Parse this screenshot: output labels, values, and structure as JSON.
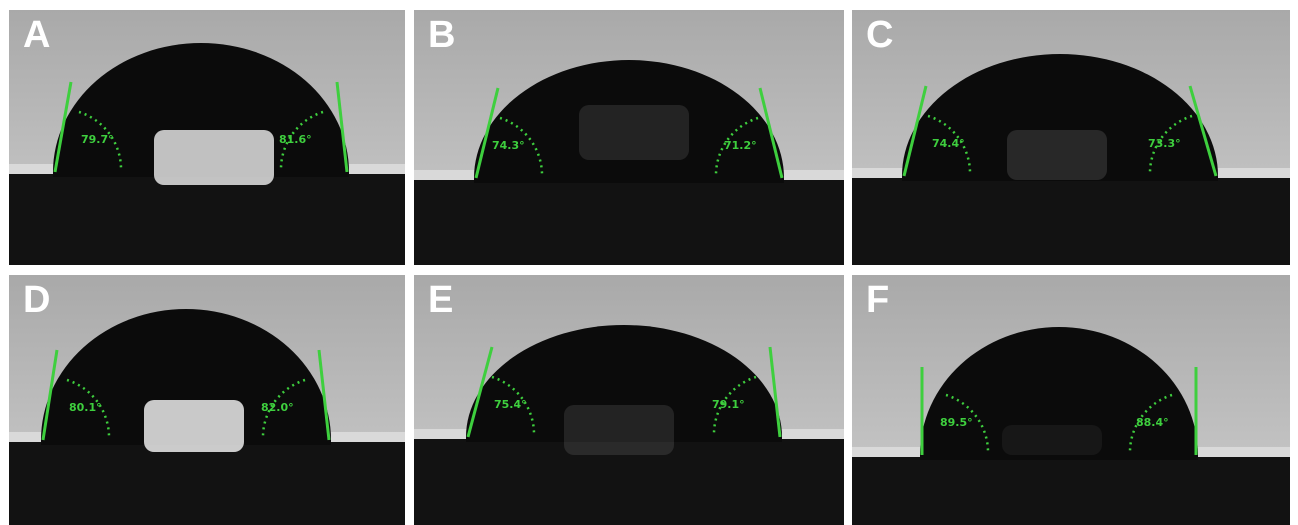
{
  "figure": {
    "panels": [
      {
        "label": "A",
        "left_angle": "79.7°",
        "right_angle": "81.6°"
      },
      {
        "label": "B",
        "left_angle": "74.3°",
        "right_angle": "71.2°"
      },
      {
        "label": "C",
        "left_angle": "74.4°",
        "right_angle": "73.3°"
      },
      {
        "label": "D",
        "left_angle": "80.1°",
        "right_angle": "82.0°"
      },
      {
        "label": "E",
        "left_angle": "75.4°",
        "right_angle": "79.1°"
      },
      {
        "label": "F",
        "left_angle": "89.5°",
        "right_angle": "88.4°"
      }
    ],
    "colors": {
      "background": "#b9b9b9",
      "droplet": "#0b0b0b",
      "tangent_line": "#3ecf3e",
      "label": "#ffffff"
    }
  }
}
